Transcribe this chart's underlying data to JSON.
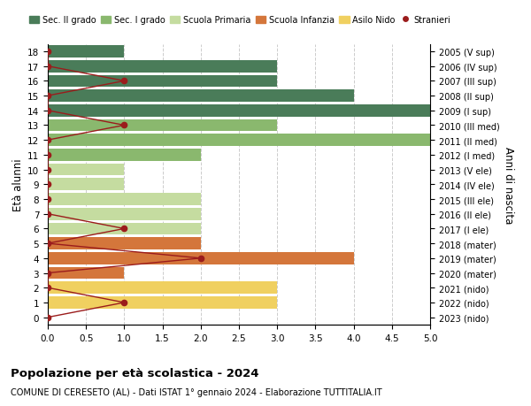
{
  "ages": [
    18,
    17,
    16,
    15,
    14,
    13,
    12,
    11,
    10,
    9,
    8,
    7,
    6,
    5,
    4,
    3,
    2,
    1,
    0
  ],
  "years": [
    "2005 (V sup)",
    "2006 (IV sup)",
    "2007 (III sup)",
    "2008 (II sup)",
    "2009 (I sup)",
    "2010 (III med)",
    "2011 (II med)",
    "2012 (I med)",
    "2013 (V ele)",
    "2014 (IV ele)",
    "2015 (III ele)",
    "2016 (II ele)",
    "2017 (I ele)",
    "2018 (mater)",
    "2019 (mater)",
    "2020 (mater)",
    "2021 (nido)",
    "2022 (nido)",
    "2023 (nido)"
  ],
  "bar_values": [
    1,
    3,
    3,
    4,
    5,
    3,
    5,
    2,
    1,
    1,
    2,
    2,
    2,
    2,
    4,
    1,
    3,
    3,
    0
  ],
  "bar_colors": [
    "#4a7c59",
    "#4a7c59",
    "#4a7c59",
    "#4a7c59",
    "#4a7c59",
    "#8ab86e",
    "#8ab86e",
    "#8ab86e",
    "#c5dca0",
    "#c5dca0",
    "#c5dca0",
    "#c5dca0",
    "#c5dca0",
    "#d4763b",
    "#d4763b",
    "#d4763b",
    "#f0d060",
    "#f0d060",
    "#f0d060"
  ],
  "stranieri_values": [
    0,
    0,
    1,
    0,
    0,
    1,
    0,
    0,
    0,
    0,
    0,
    0,
    1,
    0,
    2,
    0,
    0,
    1,
    0
  ],
  "legend_labels": [
    "Sec. II grado",
    "Sec. I grado",
    "Scuola Primaria",
    "Scuola Infanzia",
    "Asilo Nido",
    "Stranieri"
  ],
  "legend_colors": [
    "#4a7c59",
    "#8ab86e",
    "#c5dca0",
    "#d4763b",
    "#f0d060",
    "#9b1c1c"
  ],
  "stranieri_color": "#9b1c1c",
  "title_bold": "Popolazione per età scolastica - 2024",
  "subtitle": "COMUNE DI CERESETO (AL) - Dati ISTAT 1° gennaio 2024 - Elaborazione TUTTITALIA.IT",
  "ylabel_left": "Età alunni",
  "ylabel_right": "Anni di nascita",
  "xlim": [
    0,
    5.0
  ],
  "ylim": [
    -0.5,
    18.5
  ],
  "background_color": "#ffffff",
  "grid_color": "#cccccc",
  "bar_height": 0.82
}
